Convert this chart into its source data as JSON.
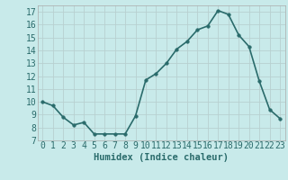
{
  "x": [
    0,
    1,
    2,
    3,
    4,
    5,
    6,
    7,
    8,
    9,
    10,
    11,
    12,
    13,
    14,
    15,
    16,
    17,
    18,
    19,
    20,
    21,
    22,
    23
  ],
  "y": [
    10.0,
    9.7,
    8.8,
    8.2,
    8.4,
    7.5,
    7.5,
    7.5,
    7.5,
    8.9,
    11.7,
    12.2,
    13.0,
    14.1,
    14.7,
    15.6,
    15.9,
    17.1,
    16.8,
    15.2,
    14.3,
    11.6,
    9.4,
    8.7
  ],
  "xlabel": "Humidex (Indice chaleur)",
  "ylabel": "",
  "bg_color": "#c8eaea",
  "grid_color": "#b8d0d0",
  "line_color": "#2a6b6b",
  "marker_color": "#2a6b6b",
  "ylim": [
    7,
    17.5
  ],
  "xlim": [
    -0.5,
    23.5
  ],
  "yticks": [
    7,
    8,
    9,
    10,
    11,
    12,
    13,
    14,
    15,
    16,
    17
  ],
  "xticks": [
    0,
    1,
    2,
    3,
    4,
    5,
    6,
    7,
    8,
    9,
    10,
    11,
    12,
    13,
    14,
    15,
    16,
    17,
    18,
    19,
    20,
    21,
    22,
    23
  ],
  "xlabel_fontsize": 7.5,
  "tick_fontsize": 7,
  "tick_color": "#2a6b6b",
  "line_width": 1.2,
  "marker_size": 2.5
}
